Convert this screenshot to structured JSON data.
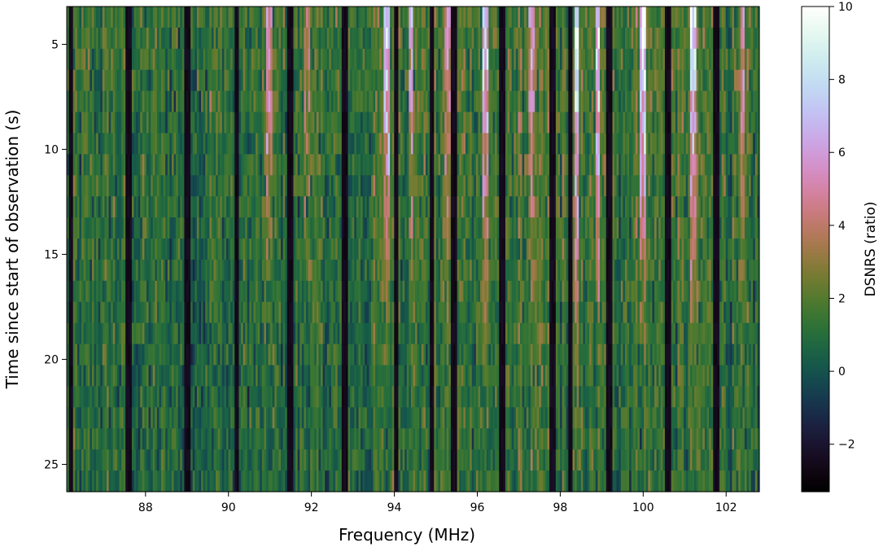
{
  "chart_data": {
    "type": "heatmap",
    "title": "",
    "xlabel": "Frequency (MHz)",
    "ylabel": "Time since start of observation (s)",
    "xlim": [
      86.1,
      102.8
    ],
    "ylim": [
      26.3,
      3.2
    ],
    "y_direction": "top-to-bottom",
    "xticks": [
      88,
      90,
      92,
      94,
      96,
      98,
      100,
      102
    ],
    "yticks": [
      5,
      10,
      15,
      20,
      25
    ],
    "time_rows": 23,
    "time_step_s": 1,
    "colormap": "cubehelix",
    "colorbar": {
      "label": "DSNRS (ratio)",
      "range": [
        -3.3,
        10
      ],
      "ticks": [
        -2,
        0,
        2,
        4,
        6,
        8,
        10
      ]
    },
    "flagged_channels_mhz": [
      86.2,
      87.6,
      89.0,
      90.2,
      91.5,
      92.8,
      94.05,
      94.9,
      95.45,
      96.6,
      97.8,
      98.25,
      99.2,
      100.6,
      101.75
    ],
    "bright_channels": [
      {
        "freq_mhz": 91.0,
        "peak": 6.5
      },
      {
        "freq_mhz": 91.9,
        "peak": 5.5
      },
      {
        "freq_mhz": 93.8,
        "peak": 8.5
      },
      {
        "freq_mhz": 94.4,
        "peak": 6.5
      },
      {
        "freq_mhz": 95.3,
        "peak": 5.5
      },
      {
        "freq_mhz": 96.2,
        "peak": 7.5
      },
      {
        "freq_mhz": 97.3,
        "peak": 6.0
      },
      {
        "freq_mhz": 98.4,
        "peak": 9.5
      },
      {
        "freq_mhz": 98.9,
        "peak": 9.0
      },
      {
        "freq_mhz": 100.0,
        "peak": 10.0
      },
      {
        "freq_mhz": 101.2,
        "peak": 9.0
      },
      {
        "freq_mhz": 102.4,
        "peak": 6.0
      }
    ],
    "grid": false
  }
}
